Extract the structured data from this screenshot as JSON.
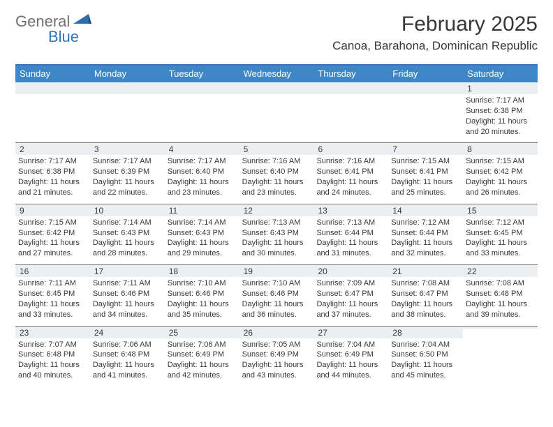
{
  "brand": {
    "word1": "General",
    "word2": "Blue",
    "color_gray": "#6f6f6f",
    "color_blue": "#2f77b9"
  },
  "title": "February 2025",
  "location": "Canoa, Barahona, Dominican Republic",
  "header_bg": "#3f86c7",
  "header_border": "#2f77b9",
  "row_sep": "#7a7a7a",
  "daynum_bg": "#eceff2",
  "text_color": "#373737",
  "weekdays": [
    "Sunday",
    "Monday",
    "Tuesday",
    "Wednesday",
    "Thursday",
    "Friday",
    "Saturday"
  ],
  "weeks": [
    [
      null,
      null,
      null,
      null,
      null,
      null,
      {
        "n": "1",
        "sr": "Sunrise: 7:17 AM",
        "ss": "Sunset: 6:38 PM",
        "d1": "Daylight: 11 hours",
        "d2": "and 20 minutes."
      }
    ],
    [
      {
        "n": "2",
        "sr": "Sunrise: 7:17 AM",
        "ss": "Sunset: 6:38 PM",
        "d1": "Daylight: 11 hours",
        "d2": "and 21 minutes."
      },
      {
        "n": "3",
        "sr": "Sunrise: 7:17 AM",
        "ss": "Sunset: 6:39 PM",
        "d1": "Daylight: 11 hours",
        "d2": "and 22 minutes."
      },
      {
        "n": "4",
        "sr": "Sunrise: 7:17 AM",
        "ss": "Sunset: 6:40 PM",
        "d1": "Daylight: 11 hours",
        "d2": "and 23 minutes."
      },
      {
        "n": "5",
        "sr": "Sunrise: 7:16 AM",
        "ss": "Sunset: 6:40 PM",
        "d1": "Daylight: 11 hours",
        "d2": "and 23 minutes."
      },
      {
        "n": "6",
        "sr": "Sunrise: 7:16 AM",
        "ss": "Sunset: 6:41 PM",
        "d1": "Daylight: 11 hours",
        "d2": "and 24 minutes."
      },
      {
        "n": "7",
        "sr": "Sunrise: 7:15 AM",
        "ss": "Sunset: 6:41 PM",
        "d1": "Daylight: 11 hours",
        "d2": "and 25 minutes."
      },
      {
        "n": "8",
        "sr": "Sunrise: 7:15 AM",
        "ss": "Sunset: 6:42 PM",
        "d1": "Daylight: 11 hours",
        "d2": "and 26 minutes."
      }
    ],
    [
      {
        "n": "9",
        "sr": "Sunrise: 7:15 AM",
        "ss": "Sunset: 6:42 PM",
        "d1": "Daylight: 11 hours",
        "d2": "and 27 minutes."
      },
      {
        "n": "10",
        "sr": "Sunrise: 7:14 AM",
        "ss": "Sunset: 6:43 PM",
        "d1": "Daylight: 11 hours",
        "d2": "and 28 minutes."
      },
      {
        "n": "11",
        "sr": "Sunrise: 7:14 AM",
        "ss": "Sunset: 6:43 PM",
        "d1": "Daylight: 11 hours",
        "d2": "and 29 minutes."
      },
      {
        "n": "12",
        "sr": "Sunrise: 7:13 AM",
        "ss": "Sunset: 6:43 PM",
        "d1": "Daylight: 11 hours",
        "d2": "and 30 minutes."
      },
      {
        "n": "13",
        "sr": "Sunrise: 7:13 AM",
        "ss": "Sunset: 6:44 PM",
        "d1": "Daylight: 11 hours",
        "d2": "and 31 minutes."
      },
      {
        "n": "14",
        "sr": "Sunrise: 7:12 AM",
        "ss": "Sunset: 6:44 PM",
        "d1": "Daylight: 11 hours",
        "d2": "and 32 minutes."
      },
      {
        "n": "15",
        "sr": "Sunrise: 7:12 AM",
        "ss": "Sunset: 6:45 PM",
        "d1": "Daylight: 11 hours",
        "d2": "and 33 minutes."
      }
    ],
    [
      {
        "n": "16",
        "sr": "Sunrise: 7:11 AM",
        "ss": "Sunset: 6:45 PM",
        "d1": "Daylight: 11 hours",
        "d2": "and 33 minutes."
      },
      {
        "n": "17",
        "sr": "Sunrise: 7:11 AM",
        "ss": "Sunset: 6:46 PM",
        "d1": "Daylight: 11 hours",
        "d2": "and 34 minutes."
      },
      {
        "n": "18",
        "sr": "Sunrise: 7:10 AM",
        "ss": "Sunset: 6:46 PM",
        "d1": "Daylight: 11 hours",
        "d2": "and 35 minutes."
      },
      {
        "n": "19",
        "sr": "Sunrise: 7:10 AM",
        "ss": "Sunset: 6:46 PM",
        "d1": "Daylight: 11 hours",
        "d2": "and 36 minutes."
      },
      {
        "n": "20",
        "sr": "Sunrise: 7:09 AM",
        "ss": "Sunset: 6:47 PM",
        "d1": "Daylight: 11 hours",
        "d2": "and 37 minutes."
      },
      {
        "n": "21",
        "sr": "Sunrise: 7:08 AM",
        "ss": "Sunset: 6:47 PM",
        "d1": "Daylight: 11 hours",
        "d2": "and 38 minutes."
      },
      {
        "n": "22",
        "sr": "Sunrise: 7:08 AM",
        "ss": "Sunset: 6:48 PM",
        "d1": "Daylight: 11 hours",
        "d2": "and 39 minutes."
      }
    ],
    [
      {
        "n": "23",
        "sr": "Sunrise: 7:07 AM",
        "ss": "Sunset: 6:48 PM",
        "d1": "Daylight: 11 hours",
        "d2": "and 40 minutes."
      },
      {
        "n": "24",
        "sr": "Sunrise: 7:06 AM",
        "ss": "Sunset: 6:48 PM",
        "d1": "Daylight: 11 hours",
        "d2": "and 41 minutes."
      },
      {
        "n": "25",
        "sr": "Sunrise: 7:06 AM",
        "ss": "Sunset: 6:49 PM",
        "d1": "Daylight: 11 hours",
        "d2": "and 42 minutes."
      },
      {
        "n": "26",
        "sr": "Sunrise: 7:05 AM",
        "ss": "Sunset: 6:49 PM",
        "d1": "Daylight: 11 hours",
        "d2": "and 43 minutes."
      },
      {
        "n": "27",
        "sr": "Sunrise: 7:04 AM",
        "ss": "Sunset: 6:49 PM",
        "d1": "Daylight: 11 hours",
        "d2": "and 44 minutes."
      },
      {
        "n": "28",
        "sr": "Sunrise: 7:04 AM",
        "ss": "Sunset: 6:50 PM",
        "d1": "Daylight: 11 hours",
        "d2": "and 45 minutes."
      },
      null
    ]
  ]
}
